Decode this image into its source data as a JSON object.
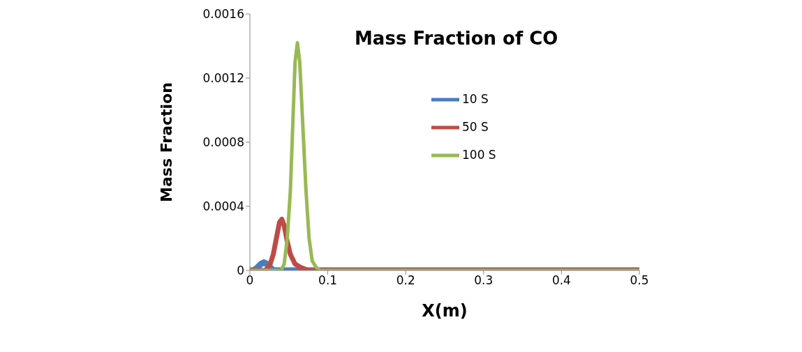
{
  "chart_data": {
    "type": "line",
    "title": "Mass Fraction of CO",
    "xlabel": "X(m)",
    "ylabel": "Mass Fraction",
    "xlim": [
      0,
      0.5
    ],
    "xticks": [
      0,
      0.1,
      0.2,
      0.3,
      0.4,
      0.5
    ],
    "ylim": [
      0,
      0.0016
    ],
    "yticks": [
      0,
      0.0004,
      0.0008,
      0.0012,
      0.0016
    ],
    "grid": false,
    "legend": "top",
    "marker": "none",
    "line_style": "solid",
    "series": [
      {
        "name": "10 S",
        "color": "#4a7ebb",
        "x": [
          0,
          0.005,
          0.01,
          0.014,
          0.018,
          0.022,
          0.026,
          0.03,
          0.5
        ],
        "values": [
          0,
          0,
          2e-05,
          4e-05,
          5e-05,
          4e-05,
          2e-05,
          0,
          0
        ]
      },
      {
        "name": "50 S",
        "color": "#be4b48",
        "x": [
          0,
          0.02,
          0.026,
          0.03,
          0.034,
          0.038,
          0.041,
          0.044,
          0.048,
          0.052,
          0.058,
          0.065,
          0.075,
          0.5
        ],
        "values": [
          0,
          0,
          4e-05,
          0.0001,
          0.0002,
          0.0003,
          0.00032,
          0.00028,
          0.00018,
          0.0001,
          4e-05,
          2e-05,
          0,
          0
        ]
      },
      {
        "name": "100 S",
        "color": "#98b954",
        "x": [
          0,
          0.04,
          0.044,
          0.048,
          0.052,
          0.055,
          0.058,
          0.061,
          0.064,
          0.068,
          0.072,
          0.076,
          0.08,
          0.085,
          0.09,
          0.5
        ],
        "values": [
          0,
          0,
          4e-05,
          0.0002,
          0.0005,
          0.0009,
          0.0013,
          0.00142,
          0.0013,
          0.0009,
          0.0005,
          0.0002,
          6e-05,
          2e-05,
          0,
          0
        ]
      }
    ]
  }
}
